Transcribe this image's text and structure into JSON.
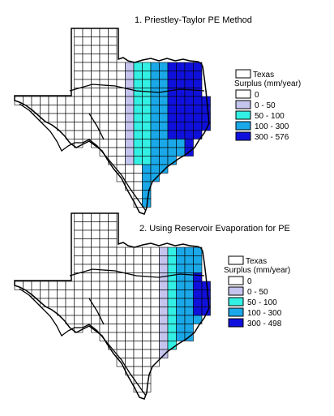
{
  "maps": [
    {
      "title": "1.   Priestley-Taylor PE Method",
      "legend": {
        "texas_label": "Texas",
        "heading": "Surplus (mm/year)",
        "items": [
          {
            "label": "0",
            "color": "#ffffff"
          },
          {
            "label": "0 - 50",
            "color": "#c4c4ee"
          },
          {
            "label": "50 - 100",
            "color": "#33f0e4"
          },
          {
            "label": "100 - 300",
            "color": "#1aa8e8"
          },
          {
            "label": "300 - 576",
            "color": "#1010dd"
          }
        ]
      }
    },
    {
      "title": "2.   Using Reservoir Evaporation for PE",
      "legend": {
        "texas_label": "Texas",
        "heading": "Surplus (mm/year)",
        "items": [
          {
            "label": "0",
            "color": "#ffffff"
          },
          {
            "label": "0 - 50",
            "color": "#c4c4ee"
          },
          {
            "label": "50 - 100",
            "color": "#33f0e4"
          },
          {
            "label": "100 - 300",
            "color": "#1aa8e8"
          },
          {
            "label": "300 - 498",
            "color": "#1010dd"
          }
        ]
      }
    }
  ]
}
